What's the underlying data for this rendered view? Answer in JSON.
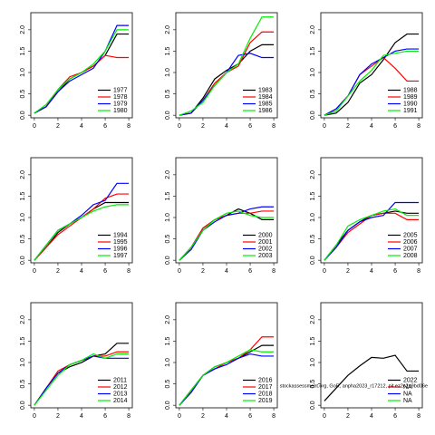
{
  "chart_data": [
    {
      "type": "line",
      "x": [
        0,
        1,
        2,
        3,
        4,
        5,
        6,
        7,
        8
      ],
      "xlim": [
        -0.3,
        8.3
      ],
      "xticks": [
        0,
        2,
        4,
        6,
        8
      ],
      "ylim": [
        -0.06,
        2.4
      ],
      "yticks": [
        {
          "value": 0,
          "label": "0.0"
        },
        {
          "value": 0.5,
          "label": "0.5"
        },
        {
          "value": 1,
          "label": "1.0"
        },
        {
          "value": 1.5,
          "label": "1.5"
        },
        {
          "value": 2,
          "label": "2.0"
        }
      ],
      "legend": "bottomright",
      "series": [
        {
          "name": "1977",
          "color": "#000000",
          "values": [
            0.05,
            0.2,
            0.55,
            0.85,
            1.0,
            1.15,
            1.4,
            1.9,
            1.9
          ]
        },
        {
          "name": "1978",
          "color": "#ff0000",
          "values": [
            0.05,
            0.2,
            0.6,
            0.9,
            1.0,
            1.15,
            1.4,
            1.35,
            1.35
          ]
        },
        {
          "name": "1979",
          "color": "#0000ff",
          "values": [
            0.05,
            0.2,
            0.55,
            0.8,
            0.95,
            1.1,
            1.5,
            2.1,
            2.1
          ]
        },
        {
          "name": "1980",
          "color": "#00ee00",
          "values": [
            0.05,
            0.25,
            0.6,
            0.85,
            1.0,
            1.2,
            1.5,
            2.0,
            2.0
          ]
        }
      ]
    },
    {
      "type": "line",
      "x": [
        0,
        1,
        2,
        3,
        4,
        5,
        6,
        7,
        8
      ],
      "xlim": [
        -0.3,
        8.3
      ],
      "xticks": [
        0,
        2,
        4,
        6,
        8
      ],
      "ylim": [
        -0.06,
        2.4
      ],
      "yticks": [
        {
          "value": 0,
          "label": "0.0"
        },
        {
          "value": 0.5,
          "label": "0.5"
        },
        {
          "value": 1,
          "label": "1.0"
        },
        {
          "value": 1.5,
          "label": "1.5"
        },
        {
          "value": 2,
          "label": "2.0"
        }
      ],
      "legend": "bottomright",
      "series": [
        {
          "name": "1983",
          "color": "#000000",
          "values": [
            0,
            0.05,
            0.4,
            0.85,
            1.05,
            1.2,
            1.5,
            1.65,
            1.65
          ]
        },
        {
          "name": "1984",
          "color": "#ff0000",
          "values": [
            0,
            0.05,
            0.35,
            0.75,
            1.0,
            1.15,
            1.7,
            1.95,
            1.95
          ]
        },
        {
          "name": "1985",
          "color": "#0000ff",
          "values": [
            0,
            0.05,
            0.35,
            0.7,
            1.0,
            1.4,
            1.45,
            1.35,
            1.35
          ]
        },
        {
          "name": "1986",
          "color": "#00ee00",
          "values": [
            0,
            0.1,
            0.3,
            0.7,
            1.0,
            1.2,
            1.8,
            2.3,
            2.3
          ]
        }
      ]
    },
    {
      "type": "line",
      "x": [
        0,
        1,
        2,
        3,
        4,
        5,
        6,
        7,
        8
      ],
      "xlim": [
        -0.3,
        8.3
      ],
      "xticks": [
        0,
        2,
        4,
        6,
        8
      ],
      "ylim": [
        -0.06,
        2.4
      ],
      "yticks": [
        {
          "value": 0,
          "label": "0.0"
        },
        {
          "value": 0.5,
          "label": "0.5"
        },
        {
          "value": 1,
          "label": "1.0"
        },
        {
          "value": 1.5,
          "label": "1.5"
        },
        {
          "value": 2,
          "label": "2.0"
        }
      ],
      "legend": "bottomright",
      "series": [
        {
          "name": "1988",
          "color": "#000000",
          "values": [
            0,
            0.05,
            0.3,
            0.75,
            0.95,
            1.3,
            1.7,
            1.9,
            1.9
          ]
        },
        {
          "name": "1989",
          "color": "#ff0000",
          "values": [
            0,
            0.15,
            0.45,
            0.95,
            1.15,
            1.35,
            1.1,
            0.8,
            0.8
          ]
        },
        {
          "name": "1990",
          "color": "#0000ff",
          "values": [
            0,
            0.15,
            0.45,
            0.95,
            1.2,
            1.35,
            1.5,
            1.55,
            1.55
          ]
        },
        {
          "name": "1991",
          "color": "#00ee00",
          "values": [
            0,
            0.1,
            0.45,
            0.8,
            1.05,
            1.4,
            1.45,
            1.5,
            1.5
          ]
        }
      ]
    },
    {
      "type": "line",
      "x": [
        0,
        1,
        2,
        3,
        4,
        5,
        6,
        7,
        8
      ],
      "xlim": [
        -0.3,
        8.3
      ],
      "xticks": [
        0,
        2,
        4,
        6,
        8
      ],
      "ylim": [
        -0.06,
        2.4
      ],
      "yticks": [
        {
          "value": 0,
          "label": "0.0"
        },
        {
          "value": 0.5,
          "label": "0.5"
        },
        {
          "value": 1,
          "label": "1.0"
        },
        {
          "value": 1.5,
          "label": "1.5"
        },
        {
          "value": 2,
          "label": "2.0"
        }
      ],
      "legend": "bottomright",
      "series": [
        {
          "name": "1994",
          "color": "#000000",
          "values": [
            0,
            0.3,
            0.65,
            0.85,
            1.0,
            1.2,
            1.35,
            1.35,
            1.35
          ]
        },
        {
          "name": "1995",
          "color": "#ff0000",
          "values": [
            0,
            0.3,
            0.6,
            0.8,
            1.0,
            1.2,
            1.45,
            1.55,
            1.55
          ]
        },
        {
          "name": "1996",
          "color": "#0000ff",
          "values": [
            0,
            0.35,
            0.7,
            0.85,
            1.05,
            1.3,
            1.4,
            1.8,
            1.8
          ]
        },
        {
          "name": "1997",
          "color": "#00ee00",
          "values": [
            0,
            0.35,
            0.7,
            0.85,
            1.0,
            1.15,
            1.25,
            1.3,
            1.3
          ]
        }
      ]
    },
    {
      "type": "line",
      "x": [
        0,
        1,
        2,
        3,
        4,
        5,
        6,
        7,
        8
      ],
      "xlim": [
        -0.3,
        8.3
      ],
      "xticks": [
        0,
        2,
        4,
        6,
        8
      ],
      "ylim": [
        -0.06,
        2.4
      ],
      "yticks": [
        {
          "value": 0,
          "label": "0.0"
        },
        {
          "value": 0.5,
          "label": "0.5"
        },
        {
          "value": 1,
          "label": "1.0"
        },
        {
          "value": 1.5,
          "label": "1.5"
        },
        {
          "value": 2,
          "label": "2.0"
        }
      ],
      "legend": "bottomright",
      "series": [
        {
          "name": "2000",
          "color": "#000000",
          "values": [
            0,
            0.3,
            0.75,
            0.95,
            1.05,
            1.2,
            1.1,
            0.95,
            0.95
          ]
        },
        {
          "name": "2001",
          "color": "#ff0000",
          "values": [
            0,
            0.3,
            0.75,
            0.95,
            1.05,
            1.1,
            1.1,
            1.15,
            1.15
          ]
        },
        {
          "name": "2002",
          "color": "#0000ff",
          "values": [
            0,
            0.25,
            0.7,
            0.9,
            1.05,
            1.1,
            1.2,
            1.25,
            1.25
          ]
        },
        {
          "name": "2003",
          "color": "#00ee00",
          "values": [
            0,
            0.3,
            0.7,
            0.95,
            1.1,
            1.15,
            1.05,
            1.0,
            1.0
          ]
        }
      ]
    },
    {
      "type": "line",
      "x": [
        0,
        1,
        2,
        3,
        4,
        5,
        6,
        7,
        8
      ],
      "xlim": [
        -0.3,
        8.3
      ],
      "xticks": [
        0,
        2,
        4,
        6,
        8
      ],
      "ylim": [
        -0.06,
        2.4
      ],
      "yticks": [
        {
          "value": 0,
          "label": "0.0"
        },
        {
          "value": 0.5,
          "label": "0.5"
        },
        {
          "value": 1,
          "label": "1.0"
        },
        {
          "value": 1.5,
          "label": "1.5"
        },
        {
          "value": 2,
          "label": "2.0"
        }
      ],
      "legend": "bottomright",
      "series": [
        {
          "name": "2005",
          "color": "#000000",
          "values": [
            0,
            0.35,
            0.7,
            0.9,
            1.05,
            1.1,
            1.15,
            1.1,
            1.1
          ]
        },
        {
          "name": "2006",
          "color": "#ff0000",
          "values": [
            0,
            0.3,
            0.65,
            0.85,
            1.05,
            1.1,
            1.1,
            0.95,
            0.95
          ]
        },
        {
          "name": "2007",
          "color": "#0000ff",
          "values": [
            0,
            0.3,
            0.7,
            0.9,
            1.0,
            1.05,
            1.35,
            1.35,
            1.35
          ]
        },
        {
          "name": "2008",
          "color": "#00ee00",
          "values": [
            0,
            0.35,
            0.8,
            0.95,
            1.05,
            1.15,
            1.2,
            1.05,
            1.05
          ]
        }
      ]
    },
    {
      "type": "line",
      "x": [
        0,
        1,
        2,
        3,
        4,
        5,
        6,
        7,
        8
      ],
      "xlim": [
        -0.3,
        8.3
      ],
      "xticks": [
        0,
        2,
        4,
        6,
        8
      ],
      "ylim": [
        -0.06,
        2.4
      ],
      "yticks": [
        {
          "value": 0,
          "label": "0.0"
        },
        {
          "value": 0.5,
          "label": "0.5"
        },
        {
          "value": 1,
          "label": "1.0"
        },
        {
          "value": 1.5,
          "label": "1.5"
        },
        {
          "value": 2,
          "label": "2.0"
        }
      ],
      "legend": "bottomright",
      "series": [
        {
          "name": "2011",
          "color": "#000000",
          "values": [
            0,
            0.4,
            0.75,
            0.9,
            1.0,
            1.15,
            1.2,
            1.45,
            1.45
          ]
        },
        {
          "name": "2012",
          "color": "#ff0000",
          "values": [
            0,
            0.4,
            0.8,
            0.95,
            1.05,
            1.15,
            1.15,
            1.25,
            1.25
          ]
        },
        {
          "name": "2013",
          "color": "#0000ff",
          "values": [
            0,
            0.4,
            0.75,
            0.95,
            1.05,
            1.15,
            1.1,
            1.1,
            1.1
          ]
        },
        {
          "name": "2014",
          "color": "#00ee00",
          "values": [
            0,
            0.35,
            0.7,
            0.95,
            1.05,
            1.2,
            1.1,
            1.2,
            1.2
          ]
        }
      ]
    },
    {
      "type": "line",
      "x": [
        0,
        1,
        2,
        3,
        4,
        5,
        6,
        7,
        8
      ],
      "xlim": [
        -0.3,
        8.3
      ],
      "xticks": [
        0,
        2,
        4,
        6,
        8
      ],
      "ylim": [
        -0.06,
        2.4
      ],
      "yticks": [
        {
          "value": 0,
          "label": "0.0"
        },
        {
          "value": 0.5,
          "label": "0.5"
        },
        {
          "value": 1,
          "label": "1.0"
        },
        {
          "value": 1.5,
          "label": "1.5"
        },
        {
          "value": 2,
          "label": "2.0"
        }
      ],
      "legend": "bottomright",
      "series": [
        {
          "name": "2016",
          "color": "#000000",
          "values": [
            0,
            0.35,
            0.7,
            0.9,
            1.0,
            1.1,
            1.25,
            1.4,
            1.4
          ]
        },
        {
          "name": "2017",
          "color": "#ff0000",
          "values": [
            0,
            0.3,
            0.7,
            0.85,
            1.0,
            1.1,
            1.3,
            1.6,
            1.6
          ]
        },
        {
          "name": "2018",
          "color": "#0000ff",
          "values": [
            0,
            0.3,
            0.7,
            0.85,
            0.95,
            1.1,
            1.2,
            1.15,
            1.15
          ]
        },
        {
          "name": "2019",
          "color": "#00ee00",
          "values": [
            0,
            0.35,
            0.7,
            0.9,
            1.0,
            1.15,
            1.3,
            1.25,
            1.25
          ]
        }
      ]
    },
    {
      "type": "line",
      "x": [
        0,
        1,
        2,
        3,
        4,
        5,
        6,
        7,
        8
      ],
      "xlim": [
        -0.3,
        8.3
      ],
      "xticks": [
        0,
        2,
        4,
        6,
        8
      ],
      "ylim": [
        -0.06,
        2.4
      ],
      "yticks": [
        {
          "value": 0,
          "label": "0.0"
        },
        {
          "value": 0.5,
          "label": "0.5"
        },
        {
          "value": 1,
          "label": "1.0"
        },
        {
          "value": 1.5,
          "label": "1.5"
        },
        {
          "value": 2,
          "label": "2.0"
        }
      ],
      "legend": "bottomright",
      "annotation": "stockassessment.org, GoR, anpha2023_r17212, pit.ez2c2a9bd06e",
      "series": [
        {
          "name": "2022",
          "color": "#000000",
          "values": [
            0.1,
            0.4,
            0.7,
            0.92,
            1.12,
            1.1,
            1.17,
            0.8,
            0.8
          ]
        },
        {
          "name": "NA",
          "color": "#ff0000",
          "values": [
            null,
            null,
            null,
            null,
            null,
            null,
            null,
            null,
            null
          ]
        },
        {
          "name": "NA",
          "color": "#0000ff",
          "values": [
            null,
            null,
            null,
            null,
            null,
            null,
            null,
            null,
            null
          ]
        },
        {
          "name": "NA",
          "color": "#00ee00",
          "values": [
            null,
            null,
            null,
            null,
            null,
            null,
            null,
            null,
            null
          ]
        }
      ]
    }
  ]
}
